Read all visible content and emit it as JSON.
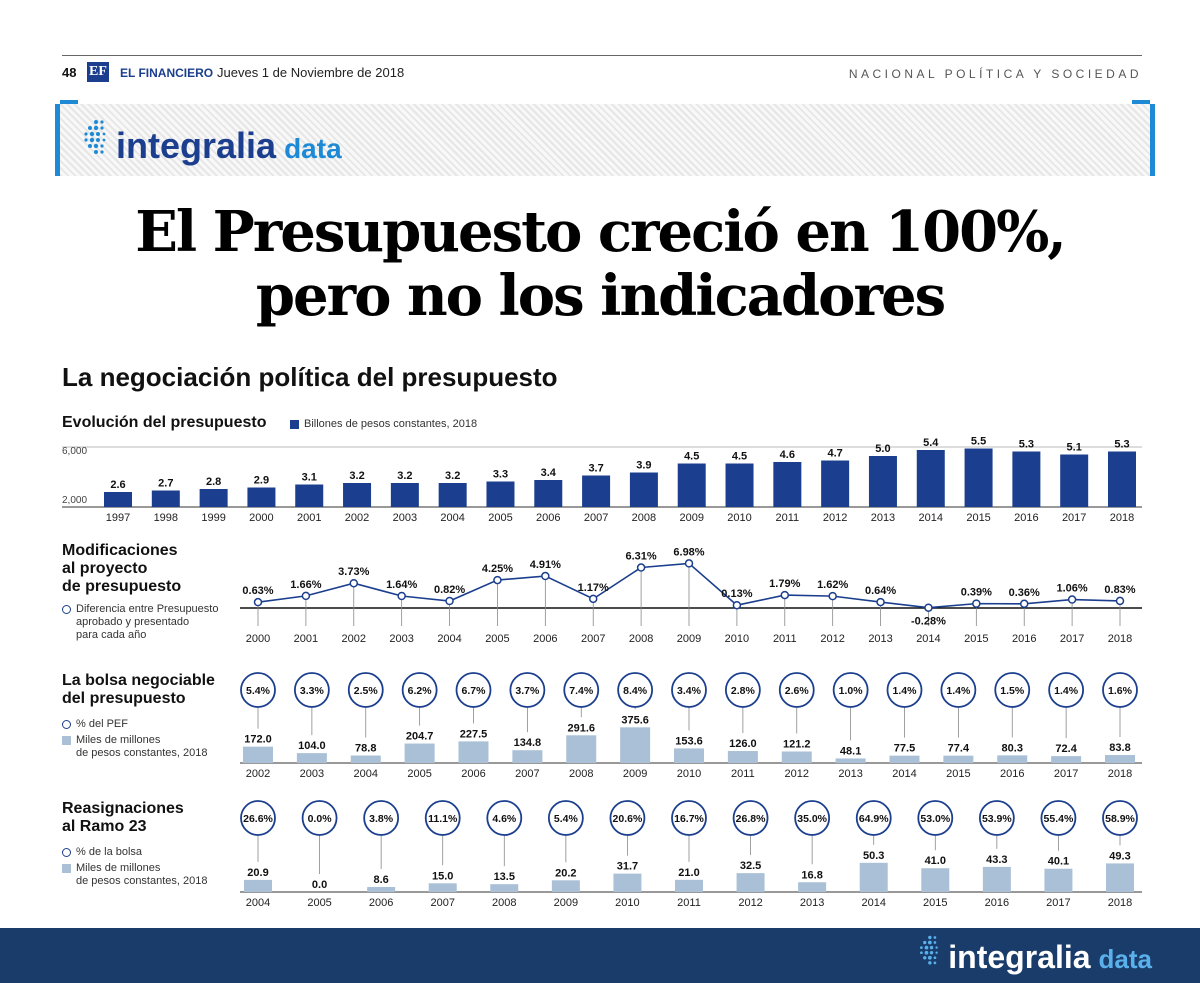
{
  "page_header": {
    "page_number": "48",
    "logo_letters": "EF",
    "brand": "EL FINANCIERO",
    "date": "Jueves 1 de Noviembre de 2018",
    "section": "NACIONAL POLÍTICA Y SOCIEDAD"
  },
  "banner": {
    "word1": "integralia",
    "word2": "data"
  },
  "headline": {
    "line1": "El Presupuesto creció en 100%,",
    "line2": "pero no los indicadores"
  },
  "subhead": "La negociación política del presupuesto",
  "colors": {
    "navy": "#1b3f8e",
    "light_bar": "#a9c0d6",
    "accent": "#1e8ad6",
    "footer": "#193c6b"
  },
  "chart_data": [
    {
      "type": "bar",
      "title": "Evolución del presupuesto",
      "legend": "Billones de pesos constantes, 2018",
      "y_ticks": [
        "6,000",
        "2,000"
      ],
      "categories": [
        "1997",
        "1998",
        "1999",
        "2000",
        "2001",
        "2002",
        "2003",
        "2004",
        "2005",
        "2006",
        "2007",
        "2008",
        "2009",
        "2010",
        "2011",
        "2012",
        "2013",
        "2014",
        "2015",
        "2016",
        "2017",
        "2018"
      ],
      "values": [
        2.6,
        2.7,
        2.8,
        2.9,
        3.1,
        3.2,
        3.2,
        3.2,
        3.3,
        3.4,
        3.7,
        3.9,
        4.5,
        4.5,
        4.6,
        4.7,
        5.0,
        5.4,
        5.5,
        5.3,
        5.1,
        5.3
      ],
      "labels": [
        "2.6",
        "2.7",
        "2.8",
        "2.9",
        "3.1",
        "3.2",
        "3.2",
        "3.2",
        "3.3",
        "3.4",
        "3.7",
        "3.9",
        "4.5",
        "4.5",
        "4.6",
        "4.7",
        "5.0",
        "5.4",
        "5.5",
        "5.3",
        "5.1",
        "5.3"
      ]
    },
    {
      "type": "line",
      "title_lines": [
        "Modificaciones",
        "al proyecto",
        "de presupuesto"
      ],
      "legend_lines": [
        "Diferencia entre Presupuesto",
        "aprobado y presentado",
        "para cada año"
      ],
      "categories": [
        "2000",
        "2001",
        "2002",
        "2003",
        "2004",
        "2005",
        "2006",
        "2007",
        "2008",
        "2009",
        "2010",
        "2011",
        "2012",
        "2013",
        "2014",
        "2015",
        "2016",
        "2017",
        "2018"
      ],
      "values": [
        0.63,
        1.66,
        3.73,
        1.64,
        0.82,
        4.25,
        4.91,
        1.17,
        6.31,
        6.98,
        0.13,
        1.79,
        1.62,
        0.64,
        -0.28,
        0.39,
        0.36,
        1.06,
        0.83
      ],
      "labels": [
        "0.63%",
        "1.66%",
        "3.73%",
        "1.64%",
        "0.82%",
        "4.25%",
        "4.91%",
        "1.17%",
        "6.31%",
        "6.98%",
        "0.13%",
        "1.79%",
        "1.62%",
        "0.64%",
        "-0.28%",
        "0.39%",
        "0.36%",
        "1.06%",
        "0.83%"
      ]
    },
    {
      "type": "bar",
      "title_lines": [
        "La bolsa negociable",
        "del presupuesto"
      ],
      "legend_pct": "% del PEF",
      "legend_bar_lines": [
        "Miles de millones",
        "de pesos constantes, 2018"
      ],
      "categories": [
        "2002",
        "2003",
        "2004",
        "2005",
        "2006",
        "2007",
        "2008",
        "2009",
        "2010",
        "2011",
        "2012",
        "2013",
        "2014",
        "2015",
        "2016",
        "2017",
        "2018"
      ],
      "values": [
        172.0,
        104.0,
        78.8,
        204.7,
        227.5,
        134.8,
        291.6,
        375.6,
        153.6,
        126.0,
        121.2,
        48.1,
        77.5,
        77.4,
        80.3,
        72.4,
        83.8
      ],
      "labels": [
        "172.0",
        "104.0",
        "78.8",
        "204.7",
        "227.5",
        "134.8",
        "291.6",
        "375.6",
        "153.6",
        "126.0",
        "121.2",
        "48.1",
        "77.5",
        "77.4",
        "80.3",
        "72.4",
        "83.8"
      ],
      "pct": [
        "5.4%",
        "3.3%",
        "2.5%",
        "6.2%",
        "6.7%",
        "3.7%",
        "7.4%",
        "8.4%",
        "3.4%",
        "2.8%",
        "2.6%",
        "1.0%",
        "1.4%",
        "1.4%",
        "1.5%",
        "1.4%",
        "1.6%"
      ]
    },
    {
      "type": "bar",
      "title_lines": [
        "Reasignaciones",
        "al Ramo 23"
      ],
      "legend_pct": "% de la bolsa",
      "legend_bar_lines": [
        "Miles de millones",
        "de pesos constantes, 2018"
      ],
      "categories": [
        "2004",
        "2005",
        "2006",
        "2007",
        "2008",
        "2009",
        "2010",
        "2011",
        "2012",
        "2013",
        "2014",
        "2015",
        "2016",
        "2017",
        "2018"
      ],
      "values": [
        20.9,
        0.0,
        8.6,
        15.0,
        13.5,
        20.2,
        31.7,
        21.0,
        32.5,
        16.8,
        50.3,
        41.0,
        43.3,
        40.1,
        49.3
      ],
      "labels": [
        "20.9",
        "0.0",
        "8.6",
        "15.0",
        "13.5",
        "20.2",
        "31.7",
        "21.0",
        "32.5",
        "16.8",
        "50.3",
        "41.0",
        "43.3",
        "40.1",
        "49.3"
      ],
      "pct": [
        "26.6%",
        "0.0%",
        "3.8%",
        "11.1%",
        "4.6%",
        "5.4%",
        "20.6%",
        "16.7%",
        "26.8%",
        "35.0%",
        "64.9%",
        "53.0%",
        "53.9%",
        "55.4%",
        "58.9%"
      ]
    }
  ],
  "footer": {
    "word1": "integralia",
    "word2": "data"
  }
}
